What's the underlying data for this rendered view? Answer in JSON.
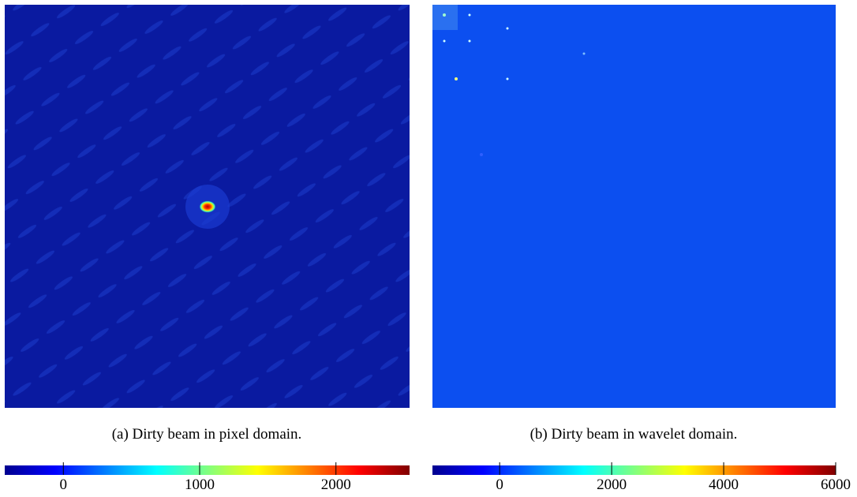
{
  "figures": [
    {
      "caption": "(a) Dirty beam in pixel domain.",
      "colorbar": {
        "lim": [
          -430,
          2540
        ],
        "ticks": [
          0,
          1000,
          2000
        ]
      }
    },
    {
      "caption": "(b) Dirty beam in wavelet domain.",
      "colorbar": {
        "lim": [
          -1200,
          6000
        ],
        "ticks": [
          0,
          2000,
          4000,
          6000
        ]
      }
    }
  ]
}
